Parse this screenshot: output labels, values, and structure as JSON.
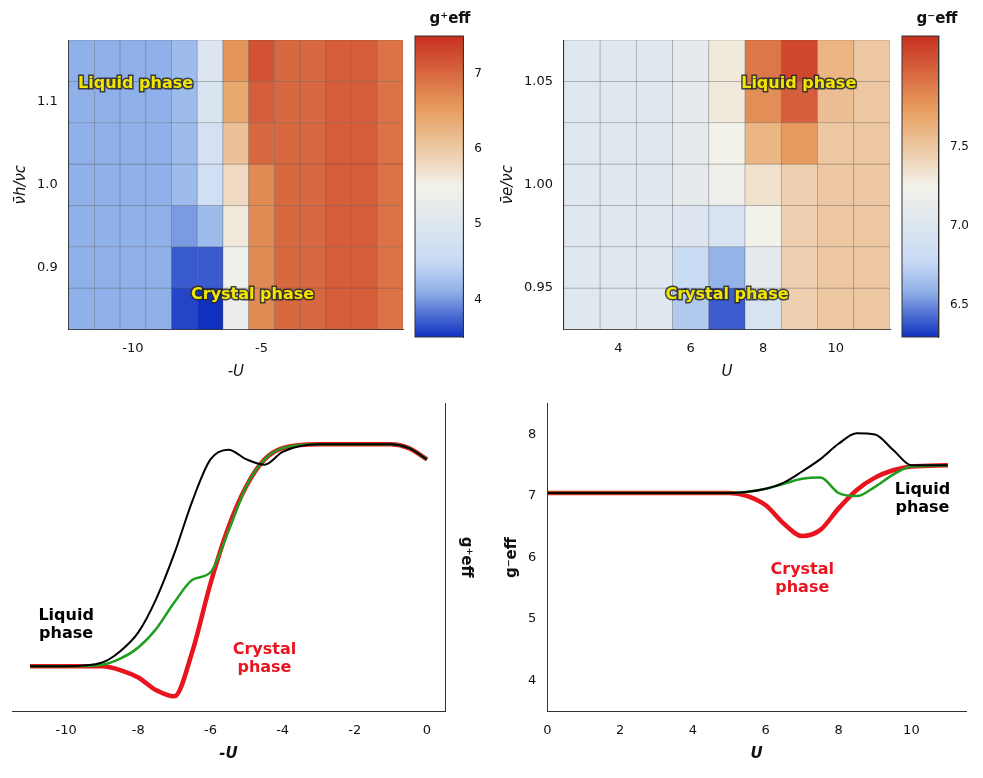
{
  "chart_data": [
    {
      "type": "heatmap",
      "x": [
        -12,
        -11,
        -10,
        -9,
        -8,
        -7,
        -6,
        -5,
        -4,
        -3,
        -2,
        -1,
        0
      ],
      "y": [
        0.85,
        0.9,
        0.95,
        1,
        1.05,
        1.1,
        1.15
      ],
      "cells": [
        [
          4.1,
          4.1,
          4.1,
          4.1,
          3.6,
          3.5,
          5.3,
          6.7,
          7.0,
          7.0,
          7.1,
          7.1,
          6.9
        ],
        [
          4.1,
          4.1,
          4.1,
          4.1,
          3.7,
          3.7,
          5.4,
          6.7,
          7.0,
          7.0,
          7.1,
          7.1,
          6.9
        ],
        [
          4.1,
          4.1,
          4.1,
          4.1,
          4.0,
          4.2,
          5.6,
          6.7,
          7.0,
          7.0,
          7.1,
          7.1,
          6.9
        ],
        [
          4.1,
          4.1,
          4.1,
          4.1,
          4.2,
          4.7,
          5.8,
          6.7,
          7.0,
          7.0,
          7.1,
          7.1,
          6.9
        ],
        [
          4.1,
          4.1,
          4.1,
          4.1,
          4.2,
          4.8,
          6.1,
          7.0,
          7.0,
          7.0,
          7.1,
          7.1,
          6.9
        ],
        [
          4.1,
          4.1,
          4.1,
          4.1,
          4.2,
          4.9,
          6.4,
          7.1,
          7.0,
          7.0,
          7.1,
          7.1,
          6.9
        ],
        [
          4.1,
          4.1,
          4.1,
          4.1,
          4.2,
          5.0,
          6.6,
          7.2,
          7.0,
          7.0,
          7.1,
          7.1,
          6.9
        ]
      ],
      "xlim": [
        -12.5,
        0.5
      ],
      "ylim": [
        0.825,
        1.175
      ],
      "xticks": [
        -10,
        -5
      ],
      "yticks": [
        0.9,
        {
          "value": 1,
          "label": "1.0"
        },
        1.1
      ],
      "x_label": "-U",
      "y_label": "ν̄h/νc",
      "colorbar": {
        "label": "g⁺eff",
        "lim": [
          3.5,
          7.5
        ],
        "ticks": [
          4,
          5,
          6,
          7
        ]
      },
      "annotations": [
        {
          "text": "Liquid phase",
          "color": "#f2e600"
        },
        {
          "text": "Crystal phase",
          "color": "#f2e600"
        }
      ],
      "grid": false
    },
    {
      "type": "heatmap",
      "x": [
        3,
        4,
        5,
        6,
        7,
        8,
        9,
        10,
        11
      ],
      "y": [
        0.94,
        0.96,
        0.98,
        1,
        1.02,
        1.04,
        1.06
      ],
      "cells": [
        [
          7.05,
          7.05,
          7.05,
          6.7,
          6.4,
          6.95,
          7.45,
          7.5,
          7.5
        ],
        [
          7.05,
          7.05,
          7.05,
          6.8,
          6.6,
          7.1,
          7.45,
          7.5,
          7.5
        ],
        [
          7.05,
          7.05,
          7.05,
          7.0,
          6.95,
          7.25,
          7.45,
          7.5,
          7.5
        ],
        [
          7.05,
          7.05,
          7.05,
          7.1,
          7.2,
          7.35,
          7.45,
          7.5,
          7.5
        ],
        [
          7.05,
          7.05,
          7.05,
          7.1,
          7.25,
          7.6,
          7.75,
          7.5,
          7.5
        ],
        [
          7.05,
          7.05,
          7.05,
          7.1,
          7.3,
          7.8,
          8.0,
          7.55,
          7.5
        ],
        [
          7.05,
          7.05,
          7.05,
          7.1,
          7.3,
          7.9,
          8.1,
          7.6,
          7.5
        ]
      ],
      "xlim": [
        2.5,
        11.5
      ],
      "ylim": [
        0.93,
        1.07
      ],
      "xticks": [
        4,
        6,
        8,
        10
      ],
      "yticks": [
        0.95,
        {
          "value": 1,
          "label": "1.00"
        },
        1.05
      ],
      "x_label": "U",
      "y_label": "ν̄e/νc",
      "colorbar": {
        "label": "g⁻eff",
        "lim": [
          6.3,
          8.2
        ],
        "ticks": [
          6.5,
          {
            "value": 7,
            "label": "7.0"
          },
          7.5
        ]
      },
      "annotations": [
        {
          "text": "Liquid phase",
          "color": "#f2e600"
        },
        {
          "text": "Crystal phase",
          "color": "#f2e600"
        }
      ],
      "grid": false
    },
    {
      "type": "line",
      "x": [
        -11,
        -10,
        -9,
        -8.5,
        -8,
        -7.5,
        -7,
        -6.5,
        -6,
        -5.5,
        -5,
        -4.5,
        -4,
        -3,
        -2,
        -1,
        -0.5,
        0
      ],
      "series": [
        {
          "color": "#000000",
          "values": [
            4.1,
            4.1,
            4.15,
            4.3,
            4.55,
            5.0,
            5.6,
            6.3,
            6.85,
            6.98,
            6.85,
            6.78,
            6.95,
            7.05,
            7.05,
            7.05,
            7.0,
            6.85
          ]
        },
        {
          "color": "#1e9e1e",
          "values": [
            4.1,
            4.1,
            4.12,
            4.2,
            4.35,
            4.6,
            4.95,
            5.25,
            5.35,
            5.9,
            6.5,
            6.85,
            7.0,
            7.05,
            7.05,
            7.05,
            7.0,
            6.85
          ]
        },
        {
          "color": "#e8141e",
          "values": [
            4.1,
            4.1,
            4.1,
            4.05,
            3.95,
            3.78,
            3.7,
            4.3,
            5.2,
            5.95,
            6.5,
            6.85,
            7.0,
            7.05,
            7.05,
            7.05,
            7.0,
            6.85
          ]
        }
      ],
      "xlim": [
        -11.5,
        0.5
      ],
      "ylim": [
        3.5,
        7.6
      ],
      "xticks": [
        -10,
        -8,
        -6,
        -4,
        -2,
        0
      ],
      "x_label": "-U",
      "y_label": "g⁺eff",
      "tick_labels": "x",
      "grid": false,
      "annotations": [
        {
          "text": "Liquid phase",
          "color": "#000000"
        },
        {
          "text": "Crystal phase",
          "color": "#e8141e"
        }
      ]
    },
    {
      "type": "line",
      "x": [
        0,
        1,
        2,
        3,
        4,
        5,
        5.5,
        6,
        6.5,
        7,
        7.5,
        8,
        8.5,
        9,
        9.5,
        10,
        11
      ],
      "series": [
        {
          "color": "#000000",
          "values": [
            7.05,
            7.05,
            7.05,
            7.05,
            7.05,
            7.05,
            7.07,
            7.12,
            7.22,
            7.4,
            7.6,
            7.85,
            8.02,
            8.0,
            7.75,
            7.5,
            7.5
          ]
        },
        {
          "color": "#1e9e1e",
          "values": [
            7.05,
            7.05,
            7.05,
            7.05,
            7.05,
            7.05,
            7.07,
            7.12,
            7.2,
            7.28,
            7.3,
            7.05,
            7.0,
            7.15,
            7.35,
            7.48,
            7.5
          ]
        },
        {
          "color": "#e8141e",
          "values": [
            7.05,
            7.05,
            7.05,
            7.05,
            7.05,
            7.05,
            7.0,
            6.85,
            6.55,
            6.35,
            6.45,
            6.8,
            7.1,
            7.3,
            7.42,
            7.48,
            7.5
          ]
        }
      ],
      "xlim": [
        0,
        11.5
      ],
      "ylim": [
        3.5,
        8.5
      ],
      "xticks": [
        0,
        2,
        4,
        6,
        8,
        10
      ],
      "yticks": [
        4,
        5,
        6,
        7,
        8
      ],
      "x_label": "U",
      "y_label": "g⁻eff",
      "grid": false,
      "annotations": [
        {
          "text": "Liquid phase",
          "color": "#000000"
        },
        {
          "text": "Crystal phase",
          "color": "#e8141e"
        }
      ]
    }
  ]
}
